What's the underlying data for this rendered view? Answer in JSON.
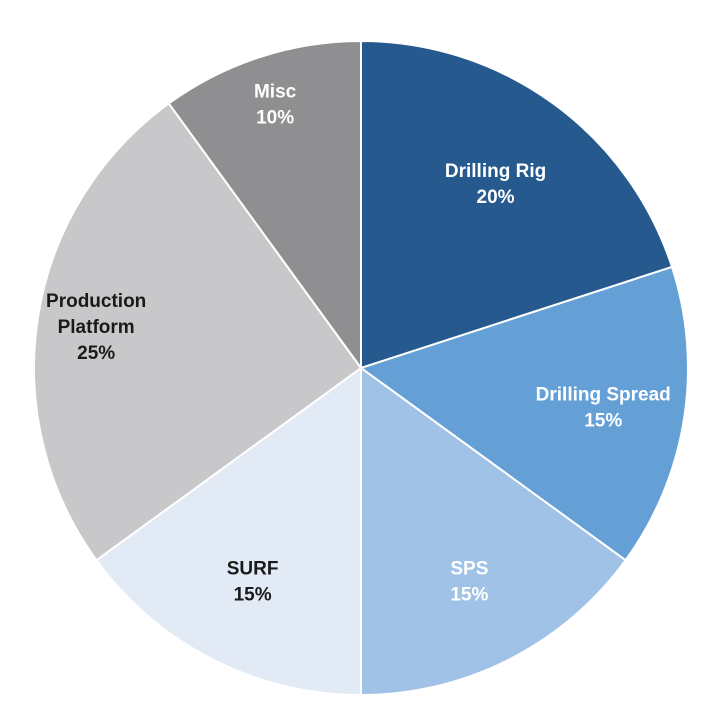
{
  "chart_data": {
    "type": "pie",
    "title": "",
    "start": "12 o'clock",
    "direction": "clockwise",
    "slices": [
      {
        "label_lines": [
          "Drilling Rig"
        ],
        "pct_text": "20%",
        "value": 20,
        "color": "#265a8f",
        "text_color": "#ffffff"
      },
      {
        "label_lines": [
          "Drilling Spread"
        ],
        "pct_text": "15%",
        "value": 15,
        "color": "#64a0d6",
        "text_color": "#ffffff"
      },
      {
        "label_lines": [
          "SPS"
        ],
        "pct_text": "15%",
        "value": 15,
        "color": "#a0c2e6",
        "text_color": "#ffffff"
      },
      {
        "label_lines": [
          "SURF"
        ],
        "pct_text": "15%",
        "value": 15,
        "color": "#e2eaf6",
        "text_color": "#1a1a1a"
      },
      {
        "label_lines": [
          "Production",
          "Platform"
        ],
        "pct_text": "25%",
        "value": 25,
        "color": "#c8c8ca",
        "text_color": "#1a1a1a"
      },
      {
        "label_lines": [
          "Misc"
        ],
        "pct_text": "10%",
        "value": 10,
        "color": "#8f8f91",
        "text_color": "#ffffff"
      }
    ]
  }
}
